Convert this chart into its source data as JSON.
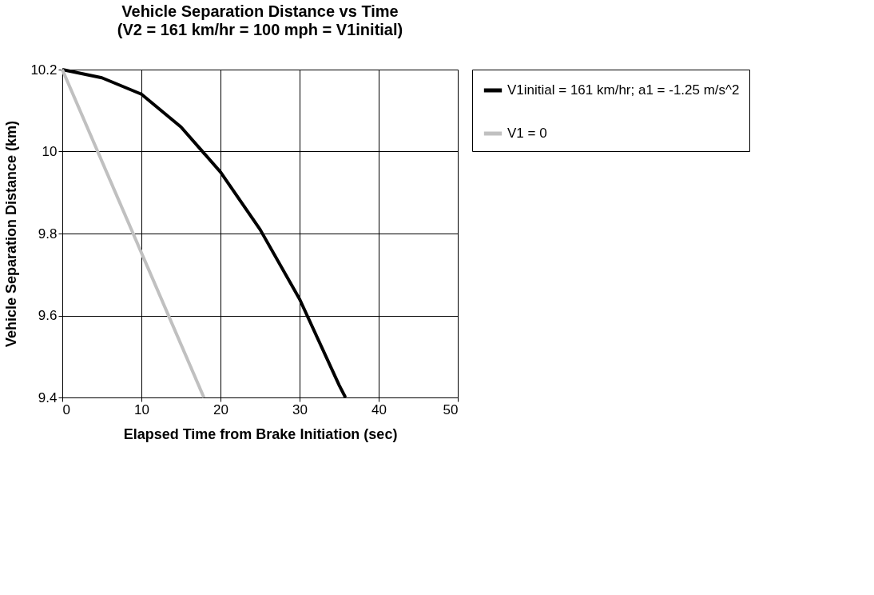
{
  "chart_data": {
    "type": "line",
    "title": "Vehicle Separation Distance vs Time",
    "subtitle": "(V2 = 161 km/hr = 100 mph = V1initial)",
    "xlabel": "Elapsed Time from Brake Initiation (sec)",
    "ylabel": "Vehicle Separation Distance (km)",
    "xlim": [
      0,
      50
    ],
    "xticks": [
      0,
      10,
      20,
      30,
      40,
      50
    ],
    "ylim": [
      9.4,
      10.2
    ],
    "yticks": [
      9.4,
      9.6,
      9.8,
      10,
      10.2
    ],
    "grid": true,
    "legend": "right",
    "marker": "none",
    "line_style": "solid",
    "series": [
      {
        "name": "V1initial = 161 km/hr; a1 = -1.25 m/s^2",
        "color": "#000000",
        "x": [
          0,
          5,
          10,
          15,
          20,
          25,
          30,
          35,
          35.8
        ],
        "values": [
          10.2,
          10.18,
          10.14,
          10.06,
          9.95,
          9.81,
          9.64,
          9.43,
          9.4
        ]
      },
      {
        "name": "V1 = 0",
        "color": "#c0c0c0",
        "x": [
          0,
          17.9
        ],
        "values": [
          10.2,
          9.4
        ]
      }
    ]
  }
}
